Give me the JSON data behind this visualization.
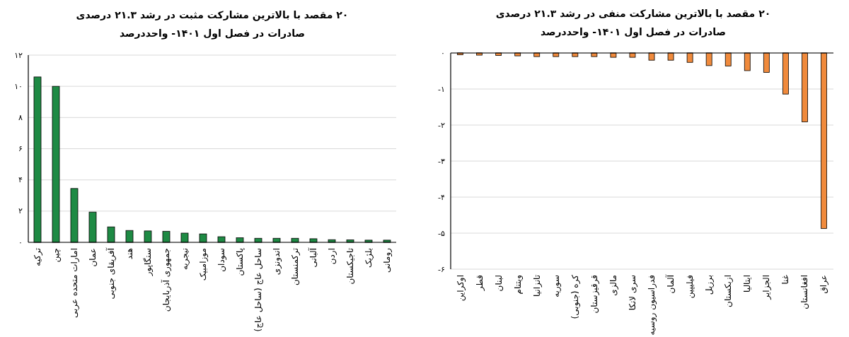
{
  "chart_data": [
    {
      "type": "bar",
      "title": "۲۰ مقصد با بالاترین مشارکت مثبت در رشد ۲۱.۳ درصدی صادرات در فصل اول ۱۴۰۱- واحددرصد",
      "categories": [
        "ترکیه",
        "چین",
        "امارات متحده عربی",
        "عمان",
        "آفریقای جنوبی",
        "هند",
        "سنگاپور",
        "جمهوری آذربایجان",
        "نیجریه",
        "موزامبیک",
        "سودان",
        "پاکستان",
        "ساحل عاج (ساحل عاج)",
        "اندونزی",
        "ترکمنستان",
        "آلبانی",
        "اردن",
        "تاجیکستان",
        "بلژیک",
        "رومانی"
      ],
      "values": [
        10.6,
        10.0,
        3.45,
        1.94,
        0.99,
        0.76,
        0.73,
        0.71,
        0.59,
        0.54,
        0.36,
        0.29,
        0.26,
        0.26,
        0.26,
        0.23,
        0.17,
        0.16,
        0.14,
        0.14
      ],
      "color": "#1e8a44",
      "ylim": [
        0,
        12
      ],
      "yticks": [
        {
          "value": 0,
          "label": "۰"
        },
        {
          "value": 2,
          "label": "۲"
        },
        {
          "value": 4,
          "label": "۴"
        },
        {
          "value": 6,
          "label": "۶"
        },
        {
          "value": 8,
          "label": "۸"
        },
        {
          "value": 10,
          "label": "۱۰"
        },
        {
          "value": 12,
          "label": "۱۲"
        }
      ],
      "grid": "y"
    },
    {
      "type": "bar",
      "title": "۲۰ مقصد با بالاترین مشارکت منفی در رشد ۲۱.۳ درصدی صادرات در فصل اول ۱۴۰۱- واحددرصد",
      "categories": [
        "اوکراین",
        "قطر",
        "لبنان",
        "ویتنام",
        "تانزانیا",
        "سوریه",
        "کره (جنوبی)",
        "قرقیزستان",
        "مالزی",
        "سری لانکا",
        "فدراسیون روسیه",
        "آلمان",
        "فیلیپین",
        "برزیل",
        "ازبکستان",
        "ایتالیا",
        "الجزایر",
        "غنا",
        "افغانستان",
        "عراق"
      ],
      "values": [
        -0.05,
        -0.06,
        -0.07,
        -0.08,
        -0.1,
        -0.1,
        -0.1,
        -0.1,
        -0.12,
        -0.12,
        -0.2,
        -0.2,
        -0.26,
        -0.35,
        -0.36,
        -0.49,
        -0.54,
        -1.14,
        -1.91,
        -4.87
      ],
      "color": "#f08a3c",
      "ylim": [
        -6,
        0
      ],
      "yticks": [
        {
          "value": -6,
          "label": "-۶"
        },
        {
          "value": -5,
          "label": "-۵"
        },
        {
          "value": -4,
          "label": "-۴"
        },
        {
          "value": -3,
          "label": "-۳"
        },
        {
          "value": -2,
          "label": "-۲"
        },
        {
          "value": -1,
          "label": "-۱"
        },
        {
          "value": 0,
          "label": "۰"
        }
      ],
      "grid": "y"
    }
  ]
}
